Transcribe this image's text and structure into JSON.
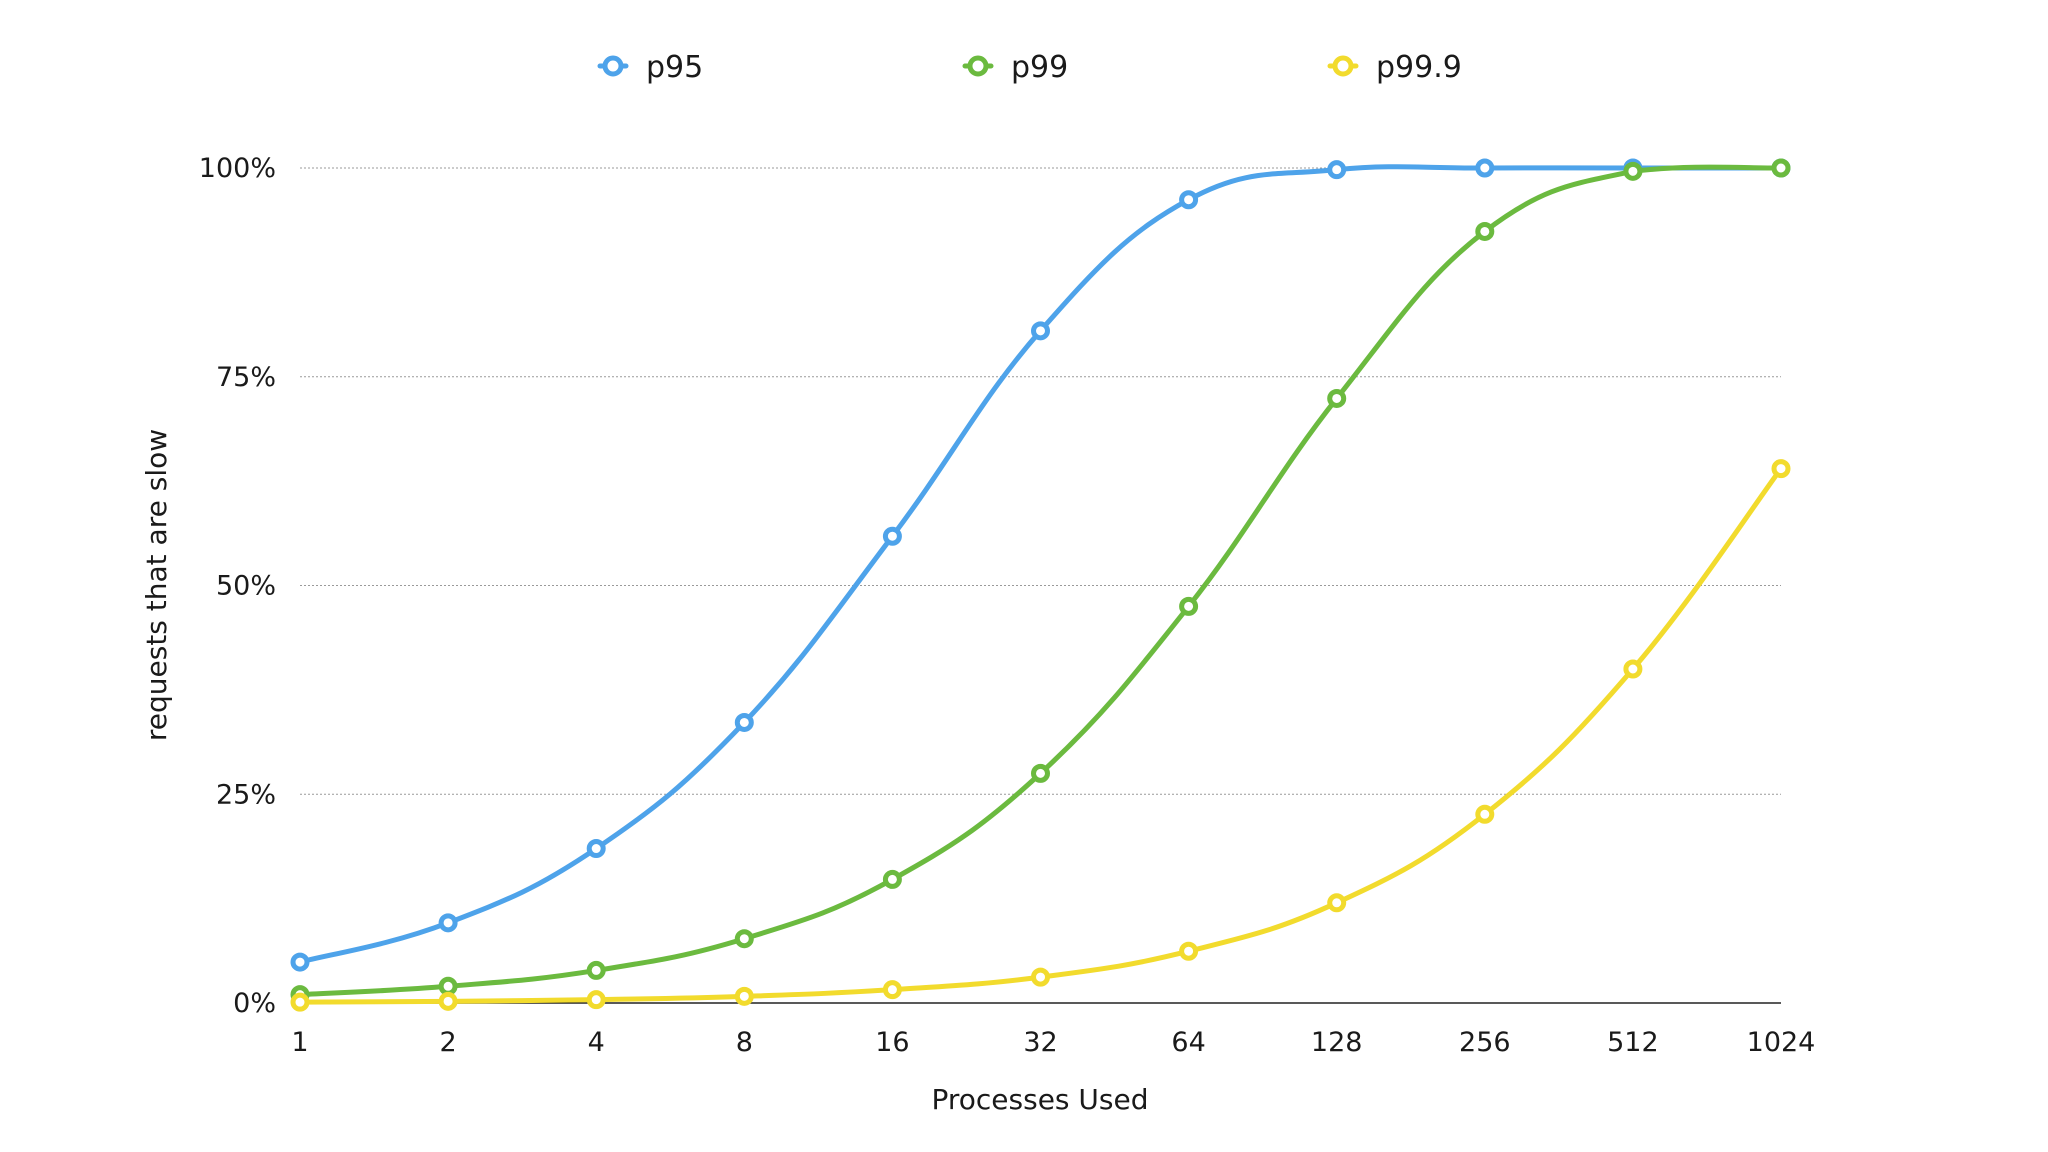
{
  "chart_data": {
    "type": "line",
    "xlabel": "Processes Used",
    "ylabel": "requests that are slow",
    "x_scale": "log2",
    "categories": [
      "1",
      "2",
      "4",
      "8",
      "16",
      "32",
      "64",
      "128",
      "256",
      "512",
      "1024"
    ],
    "y_ticks": [
      "0%",
      "25%",
      "50%",
      "75%",
      "100%"
    ],
    "ylim": [
      0,
      100
    ],
    "y_unit": "%",
    "grid": true,
    "legend_position": "top",
    "series": [
      {
        "name": "p95",
        "color": "#4ea3ea",
        "values": [
          4.9,
          9.6,
          18.5,
          33.6,
          55.9,
          80.5,
          96.2,
          99.8,
          100,
          100,
          100
        ]
      },
      {
        "name": "p99",
        "color": "#6bba3f",
        "values": [
          1.0,
          2.0,
          3.9,
          7.7,
          14.8,
          27.5,
          47.5,
          72.4,
          92.4,
          99.6,
          100
        ]
      },
      {
        "name": "p99.9",
        "color": "#f2db2d",
        "values": [
          0.1,
          0.2,
          0.4,
          0.8,
          1.6,
          3.1,
          6.2,
          12.0,
          22.6,
          40.0,
          64.0
        ]
      }
    ]
  }
}
